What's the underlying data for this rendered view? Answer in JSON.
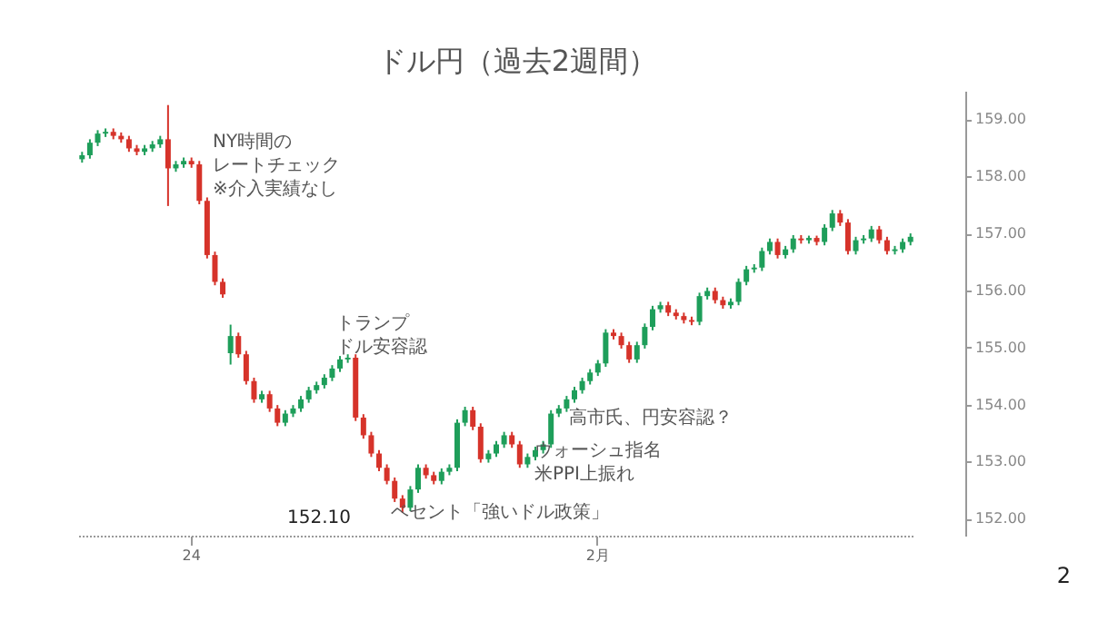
{
  "chart_data": {
    "type": "candlestick",
    "title": "ドル円（過去2週間）",
    "categories": [
      null,
      null,
      null,
      null,
      null,
      null,
      null,
      null,
      null,
      null,
      null,
      null,
      null,
      null,
      "24",
      null,
      null,
      null,
      null,
      null,
      null,
      null,
      null,
      null,
      null,
      null,
      null,
      null,
      null,
      null,
      null,
      null,
      null,
      null,
      null,
      null,
      null,
      null,
      null,
      null,
      null,
      null,
      null,
      null,
      null,
      null,
      null,
      null,
      null,
      null,
      null,
      null,
      null,
      null,
      null,
      null,
      null,
      null,
      null,
      null,
      null,
      null,
      null,
      null,
      null,
      null,
      "2月",
      null,
      null,
      null,
      null,
      null,
      null,
      null,
      null,
      null,
      null,
      null,
      null,
      null,
      null,
      null,
      null,
      null,
      null,
      null,
      null,
      null,
      null,
      null,
      null,
      null,
      null,
      null,
      null,
      null,
      null,
      null,
      null,
      null,
      null,
      null,
      null,
      null,
      null,
      null,
      null
    ],
    "ohlc": [
      [
        158.3,
        158.43,
        158.24,
        158.37
      ],
      [
        158.37,
        158.65,
        158.31,
        158.59
      ],
      [
        158.59,
        158.81,
        158.53,
        158.75
      ],
      [
        158.75,
        158.84,
        158.69,
        158.78
      ],
      [
        158.78,
        158.84,
        158.65,
        158.71
      ],
      [
        158.71,
        158.77,
        158.59,
        158.65
      ],
      [
        158.65,
        158.71,
        158.43,
        158.49
      ],
      [
        158.49,
        158.55,
        158.37,
        158.43
      ],
      [
        158.43,
        158.55,
        158.37,
        158.49
      ],
      [
        158.49,
        158.62,
        158.43,
        158.56
      ],
      [
        158.56,
        158.71,
        158.5,
        158.65
      ],
      [
        158.65,
        159.25,
        157.48,
        158.14
      ],
      [
        158.14,
        158.27,
        158.08,
        158.21
      ],
      [
        158.21,
        158.33,
        158.15,
        158.27
      ],
      [
        158.27,
        158.33,
        158.15,
        158.21
      ],
      [
        158.21,
        158.27,
        157.51,
        157.57
      ],
      [
        157.57,
        157.63,
        156.56,
        156.62
      ],
      [
        156.62,
        156.68,
        156.09,
        156.15
      ],
      [
        156.15,
        156.21,
        155.87,
        155.93
      ],
      [
        154.9,
        155.4,
        154.7,
        155.2
      ],
      [
        155.2,
        155.26,
        154.82,
        154.88
      ],
      [
        154.88,
        154.94,
        154.35,
        154.41
      ],
      [
        154.41,
        154.47,
        154.03,
        154.09
      ],
      [
        154.09,
        154.24,
        154.03,
        154.18
      ],
      [
        154.18,
        154.24,
        153.87,
        153.93
      ],
      [
        153.93,
        153.99,
        153.62,
        153.68
      ],
      [
        153.68,
        153.9,
        153.62,
        153.84
      ],
      [
        153.84,
        153.99,
        153.78,
        153.93
      ],
      [
        153.93,
        154.15,
        153.87,
        154.09
      ],
      [
        154.09,
        154.31,
        154.03,
        154.25
      ],
      [
        154.25,
        154.4,
        154.19,
        154.34
      ],
      [
        154.34,
        154.53,
        154.28,
        154.47
      ],
      [
        154.47,
        154.69,
        154.41,
        154.63
      ],
      [
        154.63,
        154.85,
        154.57,
        154.79
      ],
      [
        154.79,
        154.88,
        154.73,
        154.82
      ],
      [
        154.82,
        154.88,
        153.71,
        153.77
      ],
      [
        153.77,
        153.83,
        153.4,
        153.46
      ],
      [
        153.46,
        153.52,
        153.08,
        153.14
      ],
      [
        153.14,
        153.2,
        152.83,
        152.89
      ],
      [
        152.89,
        152.95,
        152.6,
        152.66
      ],
      [
        152.66,
        152.72,
        152.29,
        152.35
      ],
      [
        152.35,
        152.41,
        152.1,
        152.19
      ],
      [
        152.19,
        152.57,
        152.13,
        152.51
      ],
      [
        152.51,
        152.95,
        152.45,
        152.89
      ],
      [
        152.89,
        152.95,
        152.7,
        152.76
      ],
      [
        152.76,
        152.82,
        152.6,
        152.66
      ],
      [
        152.66,
        152.88,
        152.6,
        152.82
      ],
      [
        152.82,
        152.95,
        152.76,
        152.89
      ],
      [
        152.89,
        153.74,
        152.83,
        153.68
      ],
      [
        153.68,
        153.96,
        153.62,
        153.9
      ],
      [
        153.9,
        153.96,
        153.55,
        153.61
      ],
      [
        153.61,
        153.67,
        152.98,
        153.04
      ],
      [
        153.04,
        153.2,
        152.98,
        153.14
      ],
      [
        153.14,
        153.36,
        153.08,
        153.3
      ],
      [
        153.3,
        153.52,
        153.24,
        153.46
      ],
      [
        153.46,
        153.52,
        153.24,
        153.3
      ],
      [
        153.3,
        153.36,
        152.89,
        152.95
      ],
      [
        152.95,
        153.14,
        152.89,
        153.08
      ],
      [
        153.08,
        153.26,
        153.02,
        153.2
      ],
      [
        153.2,
        153.36,
        153.14,
        153.3
      ],
      [
        153.3,
        153.9,
        153.24,
        153.84
      ],
      [
        153.84,
        153.99,
        153.78,
        153.93
      ],
      [
        153.93,
        154.15,
        153.87,
        154.09
      ],
      [
        154.09,
        154.31,
        154.03,
        154.25
      ],
      [
        154.25,
        154.47,
        154.19,
        154.41
      ],
      [
        154.41,
        154.62,
        154.35,
        154.56
      ],
      [
        154.56,
        154.78,
        154.5,
        154.72
      ],
      [
        154.72,
        155.32,
        154.66,
        155.26
      ],
      [
        155.26,
        155.32,
        155.14,
        155.2
      ],
      [
        155.2,
        155.26,
        154.98,
        155.04
      ],
      [
        155.04,
        155.1,
        154.73,
        154.79
      ],
      [
        154.79,
        155.1,
        154.73,
        155.04
      ],
      [
        155.04,
        155.42,
        154.98,
        155.36
      ],
      [
        155.36,
        155.73,
        155.3,
        155.67
      ],
      [
        155.67,
        155.8,
        155.61,
        155.74
      ],
      [
        155.74,
        155.8,
        155.55,
        155.61
      ],
      [
        155.61,
        155.67,
        155.49,
        155.55
      ],
      [
        155.55,
        155.61,
        155.42,
        155.48
      ],
      [
        155.48,
        155.54,
        155.39,
        155.45
      ],
      [
        155.45,
        155.96,
        155.39,
        155.9
      ],
      [
        155.9,
        156.05,
        155.84,
        155.99
      ],
      [
        155.99,
        156.05,
        155.77,
        155.83
      ],
      [
        155.83,
        155.89,
        155.68,
        155.74
      ],
      [
        155.74,
        155.86,
        155.68,
        155.8
      ],
      [
        155.8,
        156.21,
        155.74,
        156.15
      ],
      [
        156.15,
        156.43,
        156.09,
        156.37
      ],
      [
        156.37,
        156.46,
        156.31,
        156.4
      ],
      [
        156.4,
        156.75,
        156.34,
        156.69
      ],
      [
        156.69,
        156.91,
        156.63,
        156.85
      ],
      [
        156.85,
        156.91,
        156.56,
        156.62
      ],
      [
        156.62,
        156.78,
        156.56,
        156.72
      ],
      [
        156.72,
        156.97,
        156.66,
        156.91
      ],
      [
        156.91,
        156.97,
        156.82,
        156.88
      ],
      [
        156.88,
        156.96,
        156.82,
        156.92
      ],
      [
        156.92,
        156.96,
        156.79,
        156.85
      ],
      [
        156.85,
        157.16,
        156.79,
        157.1
      ],
      [
        157.1,
        157.41,
        157.04,
        157.35
      ],
      [
        157.35,
        157.41,
        157.13,
        157.19
      ],
      [
        157.19,
        157.25,
        156.63,
        156.69
      ],
      [
        156.69,
        156.94,
        156.63,
        156.88
      ],
      [
        156.88,
        156.97,
        156.82,
        156.91
      ],
      [
        156.91,
        157.13,
        156.85,
        157.07
      ],
      [
        157.07,
        157.13,
        156.82,
        156.88
      ],
      [
        156.88,
        156.94,
        156.63,
        156.69
      ],
      [
        156.69,
        156.78,
        156.63,
        156.72
      ],
      [
        156.72,
        156.91,
        156.66,
        156.85
      ],
      [
        156.85,
        157.0,
        156.79,
        156.94
      ]
    ],
    "colors": [
      "#1e9e5a",
      "#1e9e5a",
      "#1e9e5a",
      "#1e9e5a",
      "#d6332a",
      "#d6332a",
      "#d6332a",
      "#d6332a",
      "#1e9e5a",
      "#1e9e5a",
      "#1e9e5a",
      "#d6332a",
      "#1e9e5a",
      "#1e9e5a",
      "#d6332a",
      "#d6332a",
      "#d6332a",
      "#d6332a",
      "#d6332a",
      "#1e9e5a",
      "#d6332a",
      "#d6332a",
      "#d6332a",
      "#1e9e5a",
      "#d6332a",
      "#d6332a",
      "#1e9e5a",
      "#1e9e5a",
      "#1e9e5a",
      "#1e9e5a",
      "#1e9e5a",
      "#1e9e5a",
      "#1e9e5a",
      "#1e9e5a",
      "#1e9e5a",
      "#d6332a",
      "#d6332a",
      "#d6332a",
      "#d6332a",
      "#d6332a",
      "#d6332a",
      "#d6332a",
      "#1e9e5a",
      "#1e9e5a",
      "#d6332a",
      "#d6332a",
      "#1e9e5a",
      "#1e9e5a",
      "#1e9e5a",
      "#1e9e5a",
      "#d6332a",
      "#d6332a",
      "#1e9e5a",
      "#1e9e5a",
      "#1e9e5a",
      "#d6332a",
      "#d6332a",
      "#1e9e5a",
      "#1e9e5a",
      "#1e9e5a",
      "#1e9e5a",
      "#1e9e5a",
      "#1e9e5a",
      "#1e9e5a",
      "#1e9e5a",
      "#1e9e5a",
      "#1e9e5a",
      "#1e9e5a",
      "#d6332a",
      "#d6332a",
      "#d6332a",
      "#1e9e5a",
      "#1e9e5a",
      "#1e9e5a",
      "#1e9e5a",
      "#d6332a",
      "#d6332a",
      "#d6332a",
      "#d6332a",
      "#1e9e5a",
      "#1e9e5a",
      "#d6332a",
      "#d6332a",
      "#1e9e5a",
      "#1e9e5a",
      "#1e9e5a",
      "#1e9e5a",
      "#1e9e5a",
      "#1e9e5a",
      "#d6332a",
      "#1e9e5a",
      "#1e9e5a",
      "#d6332a",
      "#1e9e5a",
      "#d6332a",
      "#1e9e5a",
      "#1e9e5a",
      "#d6332a",
      "#d6332a",
      "#1e9e5a",
      "#1e9e5a",
      "#1e9e5a",
      "#d6332a",
      "#d6332a",
      "#1e9e5a",
      "#1e9e5a",
      "#1e9e5a"
    ],
    "ylim": [
      151.7,
      159.5
    ],
    "yticks": [
      {
        "value": 152,
        "label": "152.00"
      },
      {
        "value": 153,
        "label": "153.00"
      },
      {
        "value": 154,
        "label": "154.00"
      },
      {
        "value": 155,
        "label": "155.00"
      },
      {
        "value": 156,
        "label": "156.00"
      },
      {
        "value": 157,
        "label": "157.00"
      },
      {
        "value": 158,
        "label": "158.00"
      },
      {
        "value": 159,
        "label": "159.00"
      }
    ],
    "annotations": [
      "NY時間のレートチェック※介入実績なし",
      "トランプドル安容認",
      "152.10",
      "ベセント「強いドル政策」",
      "ウォーシュ指名米PPI上振れ",
      "高市氏、円安容認？",
      "2"
    ]
  }
}
